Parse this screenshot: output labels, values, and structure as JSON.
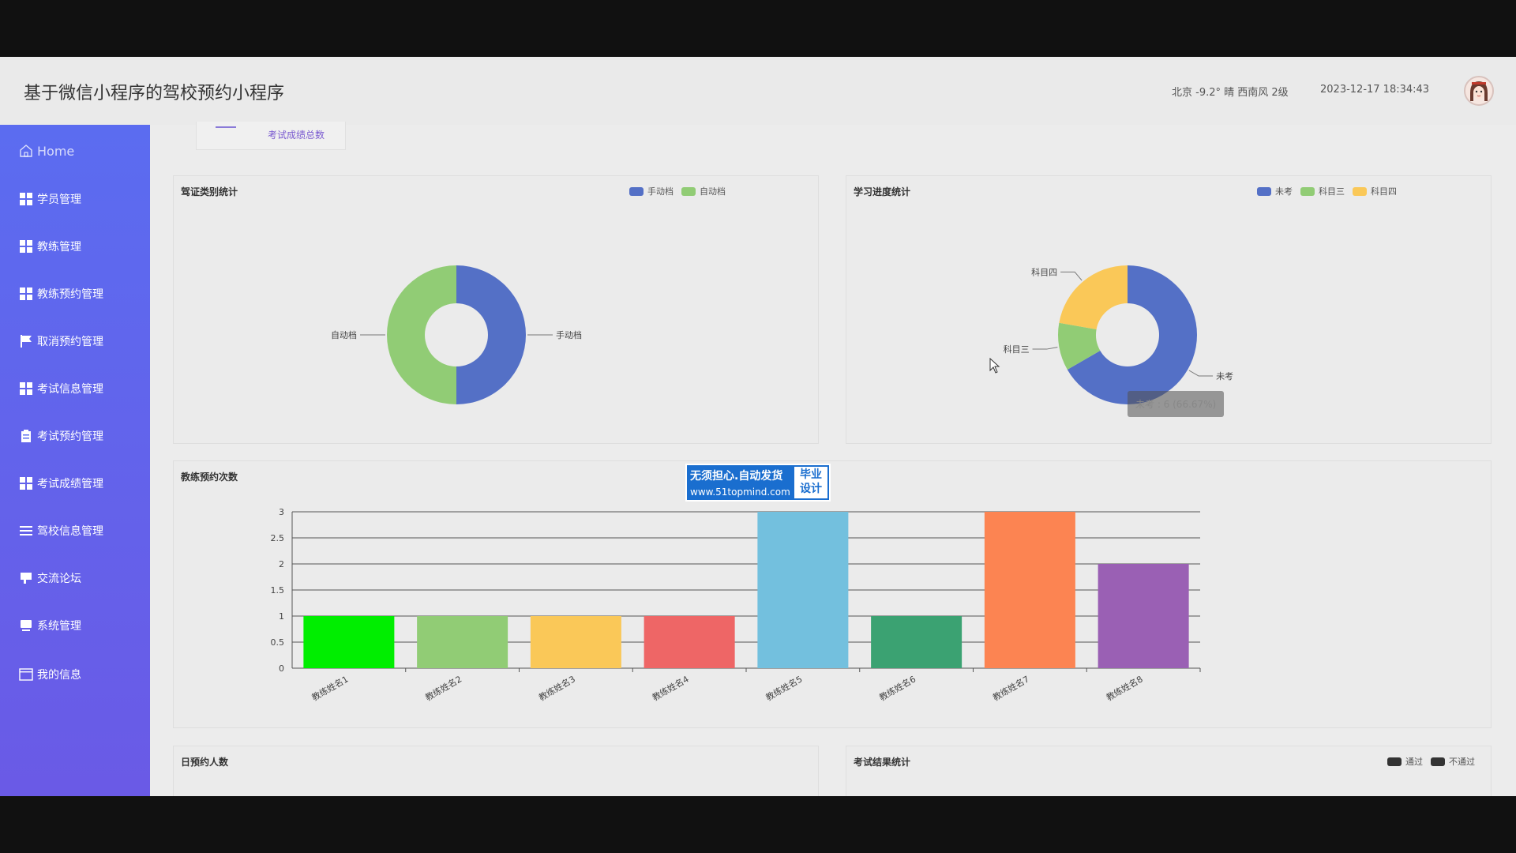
{
  "app": {
    "title": "基于微信小程序的驾校预约小程序"
  },
  "header": {
    "weather": "北京  -9.2°  晴  西南风  2级",
    "datetime": "2023-12-17 18:34:43"
  },
  "sidebar": {
    "items": [
      {
        "label": "Home",
        "icon": "home-icon"
      },
      {
        "label": "学员管理",
        "icon": "grid-icon"
      },
      {
        "label": "教练管理",
        "icon": "grid-icon"
      },
      {
        "label": "教练预约管理",
        "icon": "grid-icon"
      },
      {
        "label": "取消预约管理",
        "icon": "flag-icon"
      },
      {
        "label": "考试信息管理",
        "icon": "grid-icon"
      },
      {
        "label": "考试预约管理",
        "icon": "clipboard-icon"
      },
      {
        "label": "考试成绩管理",
        "icon": "grid-icon"
      },
      {
        "label": "驾校信息管理",
        "icon": "list-icon"
      },
      {
        "label": "交流论坛",
        "icon": "chat-icon"
      },
      {
        "label": "系统管理",
        "icon": "monitor-icon"
      },
      {
        "label": "我的信息",
        "icon": "profile-icon"
      }
    ]
  },
  "stat": {
    "label": "考试成绩总数"
  },
  "colors": {
    "blue": "#5470c6",
    "green": "#91cc75",
    "yellow": "#fac858",
    "red": "#ee6666",
    "cyan": "#73c0de",
    "teal": "#3ba272",
    "orange": "#fc8452",
    "purple": "#9a60b4",
    "lime": "#00ee00",
    "sidebar": "#5b6cf0"
  },
  "panels": {
    "license": {
      "title": "驾证类别统计"
    },
    "progress": {
      "title": "学习进度统计"
    },
    "coach": {
      "title": "教练预约次数"
    },
    "daily": {
      "title": "日预约人数"
    },
    "result": {
      "title": "考试结果统计"
    }
  },
  "tooltip": {
    "text": "未考 : 6 (66.67%)"
  },
  "watermark": {
    "main": "无须担心.自动发货",
    "url": "www.51topmind.com",
    "side1": "毕业",
    "side2": "设计"
  },
  "chart_data": [
    {
      "type": "pie",
      "title": "驾证类别统计",
      "donut": true,
      "legend": "top-right",
      "slices": [
        {
          "name": "手动档",
          "value": 1,
          "color": "#5470c6"
        },
        {
          "name": "自动档",
          "value": 1,
          "color": "#91cc75"
        }
      ]
    },
    {
      "type": "pie",
      "title": "学习进度统计",
      "donut": true,
      "legend": "top-right",
      "slices": [
        {
          "name": "未考",
          "value": 6,
          "color": "#5470c6"
        },
        {
          "name": "科目三",
          "value": 1,
          "color": "#91cc75"
        },
        {
          "name": "科目四",
          "value": 2,
          "color": "#fac858"
        }
      ]
    },
    {
      "type": "bar",
      "title": "教练预约次数",
      "categories": [
        "教练姓名1",
        "教练姓名2",
        "教练姓名3",
        "教练姓名4",
        "教练姓名5",
        "教练姓名6",
        "教练姓名7",
        "教练姓名8"
      ],
      "values": [
        1,
        1,
        1,
        1,
        3,
        1,
        3,
        2
      ],
      "colors": [
        "#00ee00",
        "#91cc75",
        "#fac858",
        "#ee6666",
        "#73c0de",
        "#3ba272",
        "#fc8452",
        "#9a60b4"
      ],
      "ylim": [
        0,
        3
      ],
      "yticks": [
        "0",
        "0.5",
        "1",
        "1.5",
        "2",
        "2.5",
        "3"
      ],
      "grid": true
    },
    {
      "type": "line",
      "title": "日预约人数"
    },
    {
      "type": "bar",
      "title": "考试结果统计",
      "legend": "top-right",
      "series": [
        {
          "name": "通过",
          "color": "#333333"
        },
        {
          "name": "不通过",
          "color": "#333333"
        }
      ]
    }
  ]
}
